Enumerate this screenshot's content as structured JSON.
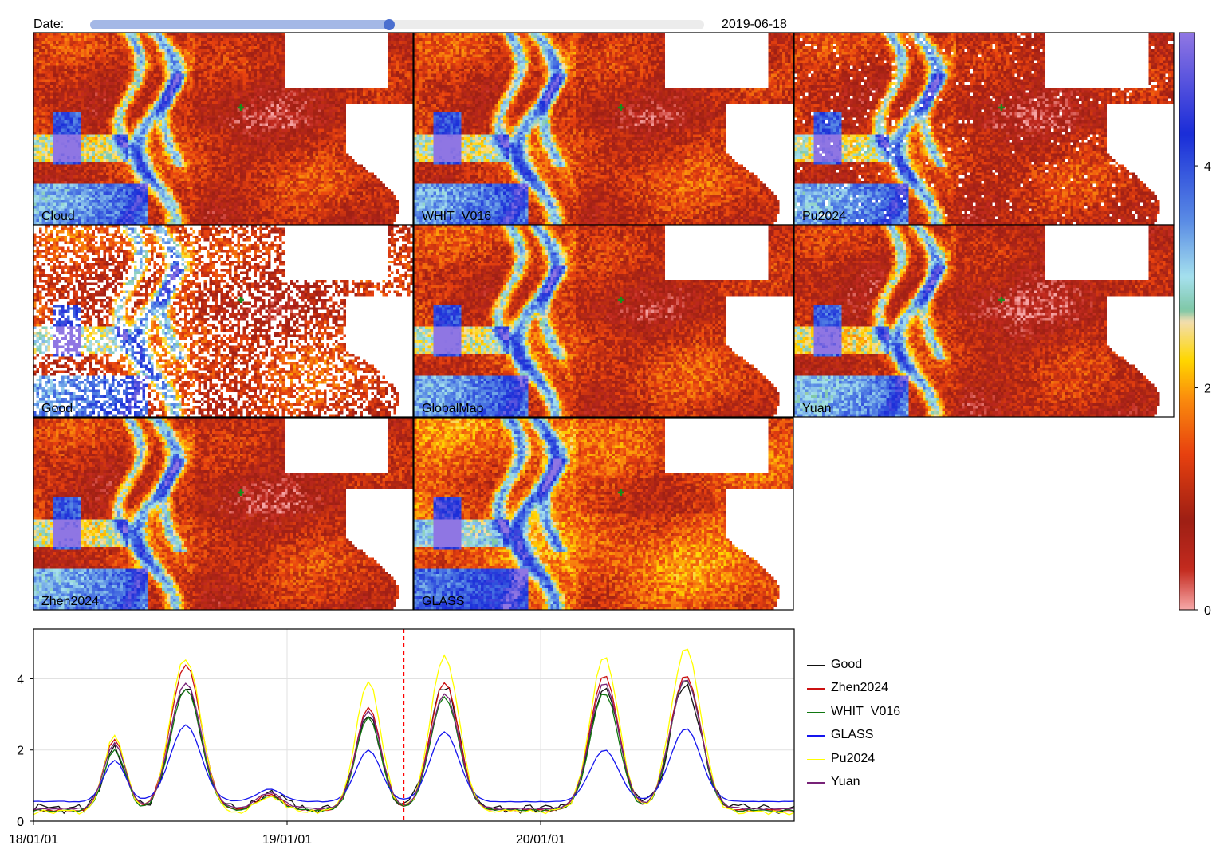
{
  "date": {
    "label": "Date:",
    "value": "2019-06-18",
    "progress": 0.487
  },
  "maps": {
    "panels": [
      {
        "name": "Cloud",
        "nan_fraction": 0.0,
        "offset": 0.0
      },
      {
        "name": "WHIT_V016",
        "nan_fraction": 0.0,
        "offset": 0.1
      },
      {
        "name": "Pu2024",
        "nan_fraction": 0.03,
        "offset": 0.0
      },
      {
        "name": "Good",
        "nan_fraction": 0.35,
        "offset": 0.2
      },
      {
        "name": "GlobalMap",
        "nan_fraction": 0.0,
        "offset": 0.1
      },
      {
        "name": "Yuan",
        "nan_fraction": 0.0,
        "offset": -0.1
      },
      {
        "name": "Zhen2024",
        "nan_fraction": 0.0,
        "offset": 0.0
      },
      {
        "name": "GLASS",
        "nan_fraction": 0.0,
        "offset": 0.5
      }
    ],
    "marker_symbol": "plus",
    "marker_color": "#1a8c1a",
    "colormap_stops": [
      {
        "v": 0.0,
        "color": "#f6a5a5"
      },
      {
        "v": 0.35,
        "color": "#c42b1f"
      },
      {
        "v": 0.8,
        "color": "#9e1f14"
      },
      {
        "v": 1.4,
        "color": "#e8410f"
      },
      {
        "v": 1.9,
        "color": "#fb8c0d"
      },
      {
        "v": 2.25,
        "color": "#ffd700"
      },
      {
        "v": 2.6,
        "color": "#f3deb1"
      },
      {
        "v": 2.7,
        "color": "#7fc7a6"
      },
      {
        "v": 3.0,
        "color": "#a6e1ee"
      },
      {
        "v": 3.5,
        "color": "#5b8de5"
      },
      {
        "v": 4.3,
        "color": "#1a2dd8"
      },
      {
        "v": 5.2,
        "color": "#8f76e3"
      }
    ]
  },
  "colorbar": {
    "ticks": [
      "0",
      "2",
      "4"
    ]
  },
  "chart_data": {
    "type": "line",
    "x_tick_labels": [
      "18/01/01",
      "19/01/01",
      "20/01/01"
    ],
    "x_ticks": [
      "2018-01-01",
      "2019-01-01",
      "2020-01-01"
    ],
    "xlim": [
      "2018-01-01",
      "2020-12-31"
    ],
    "ylim": [
      0,
      5.4
    ],
    "y_ticks": [
      0,
      2,
      4
    ],
    "y_tick_labels": [
      "0",
      "2",
      "4"
    ],
    "grid": true,
    "vline_date": "2019-06-18",
    "vline_color": "#ff0000",
    "legend_position": "right",
    "series": [
      {
        "name": "Good",
        "color": "#111111",
        "base": 0.35,
        "amps": [
          2.0,
          3.8,
          0.45,
          2.9,
          3.8,
          3.7,
          3.8
        ],
        "noise": 0.28
      },
      {
        "name": "Zhen2024",
        "color": "#cc1111",
        "base": 0.3,
        "amps": [
          2.3,
          4.4,
          0.45,
          3.2,
          3.9,
          4.1,
          4.1
        ],
        "noise": 0.05
      },
      {
        "name": "WHIT_V016",
        "color": "#117711",
        "base": 0.3,
        "amps": [
          2.0,
          3.7,
          0.4,
          2.9,
          3.5,
          3.6,
          4.0
        ],
        "noise": 0.08
      },
      {
        "name": "GLASS",
        "color": "#1515ee",
        "base": 0.55,
        "amps": [
          1.7,
          2.7,
          0.35,
          2.0,
          2.5,
          2.0,
          2.6
        ],
        "noise": 0.02
      },
      {
        "name": "Pu2024",
        "color": "#ffff00",
        "base": 0.25,
        "amps": [
          2.4,
          4.6,
          0.45,
          3.9,
          4.6,
          4.6,
          4.8
        ],
        "noise": 0.15
      },
      {
        "name": "Yuan",
        "color": "#772277",
        "base": 0.35,
        "amps": [
          2.2,
          3.9,
          0.45,
          3.1,
          3.6,
          3.9,
          4.0
        ],
        "noise": 0.05
      }
    ]
  }
}
